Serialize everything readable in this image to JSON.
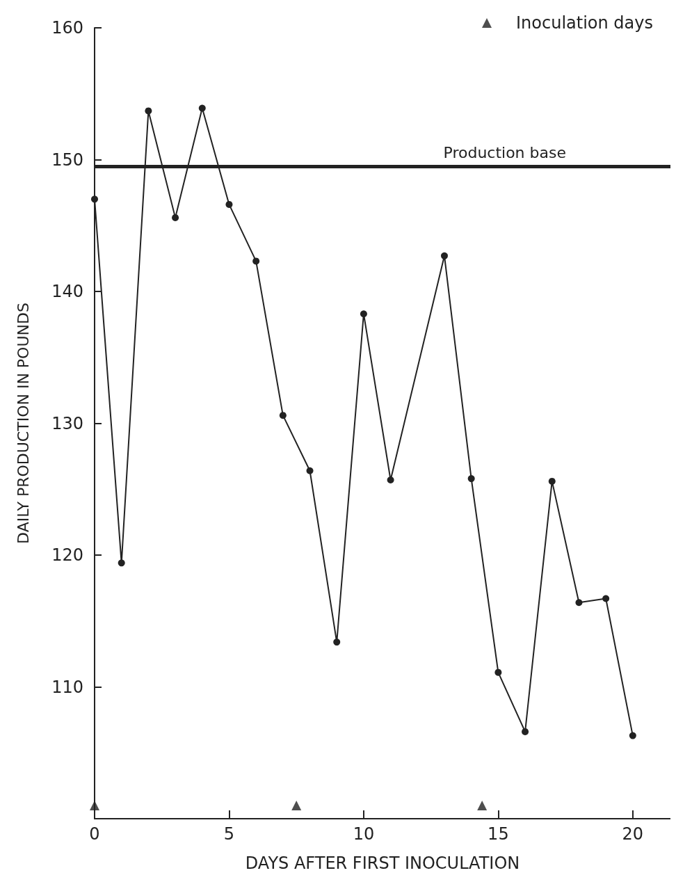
{
  "chart_data": {
    "type": "line",
    "xlabel": "DAYS AFTER FIRST INOCULATION",
    "ylabel": "DAILY PRODUCTION IN POUNDS",
    "xlim": [
      0,
      21.4
    ],
    "xticks": [
      0,
      5,
      10,
      15,
      20
    ],
    "ylim": [
      100,
      160
    ],
    "yticks": [
      110,
      120,
      130,
      140,
      150,
      160
    ],
    "marker": "circle",
    "legend": "top right",
    "grid": false,
    "series": [
      {
        "color": "#222222",
        "x": [
          0,
          1,
          2,
          3,
          4,
          5,
          6,
          7,
          8,
          9,
          10,
          11,
          13,
          14,
          15,
          16,
          17,
          18,
          19,
          20
        ],
        "values": [
          147,
          119.4,
          153.7,
          145.6,
          153.9,
          146.6,
          142.3,
          130.6,
          126.4,
          113.4,
          138.3,
          125.7,
          142.7,
          125.8,
          111.1,
          106.6,
          125.6,
          116.4,
          116.7,
          106.3
        ]
      },
      {
        "type": "scatter",
        "name": "Inoculation days",
        "marker": "triangle",
        "color": "#222222",
        "x": [
          0,
          7.5,
          14.4
        ],
        "values": [
          101,
          101,
          101
        ]
      }
    ],
    "ref_lines": [
      {
        "axis": "y",
        "value": 149.5,
        "label": "Production base",
        "color": "#222222"
      }
    ]
  }
}
